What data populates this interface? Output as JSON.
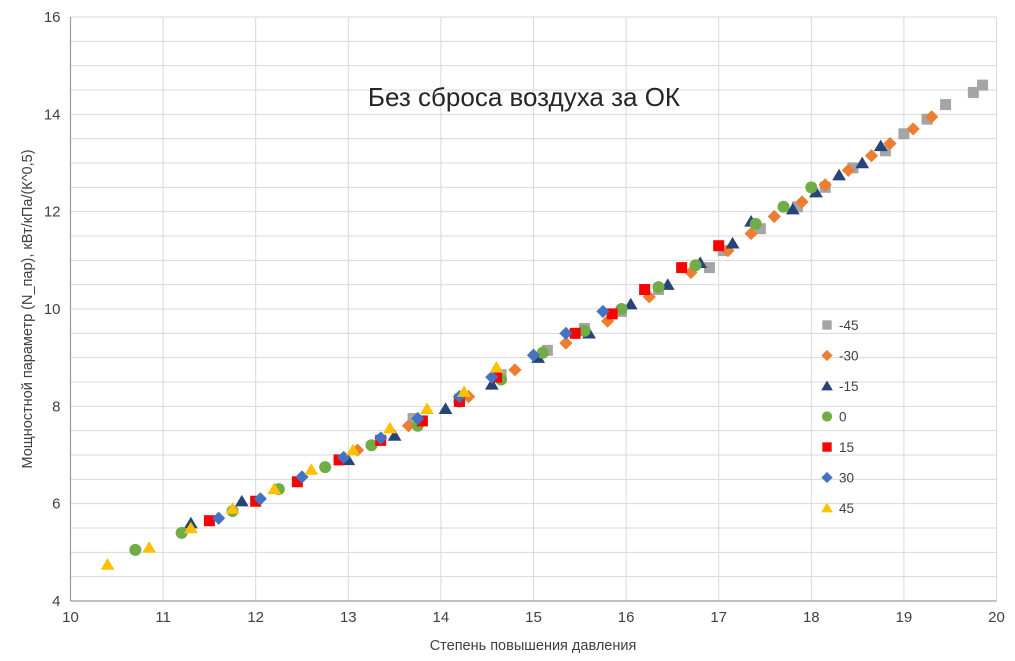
{
  "chart_data": {
    "type": "scatter",
    "title": "Без сброса воздуха за ОК",
    "xlabel": "Степень повышения давления",
    "ylabel": "Мощностной параметр (N_пар), кВт/кПа/(К^0,5)",
    "xlim": [
      10,
      20
    ],
    "ylim": [
      4,
      16
    ],
    "x_ticks": [
      10,
      11,
      12,
      13,
      14,
      15,
      16,
      17,
      18,
      19,
      20
    ],
    "y_ticks": [
      4,
      6,
      8,
      10,
      12,
      14,
      16
    ],
    "grid": {
      "vertical_step": 1,
      "horizontal_step": 0.5,
      "on": true
    },
    "legend_position": "middle-right",
    "colors": {
      "gridline": "#d9d9d9",
      "axis_line": "#9b9b9b",
      "tick_text": "#404040",
      "title_text": "#262626"
    },
    "series": [
      {
        "name": "-45",
        "marker": "square",
        "color": "#a5a5a5",
        "points": [
          [
            13.7,
            7.75
          ],
          [
            14.2,
            8.15
          ],
          [
            14.65,
            8.65
          ],
          [
            15.15,
            9.15
          ],
          [
            15.55,
            9.6
          ],
          [
            15.95,
            9.95
          ],
          [
            16.35,
            10.4
          ],
          [
            16.9,
            10.85
          ],
          [
            17.05,
            11.2
          ],
          [
            17.45,
            11.65
          ],
          [
            17.85,
            12.1
          ],
          [
            18.15,
            12.5
          ],
          [
            18.45,
            12.9
          ],
          [
            18.8,
            13.25
          ],
          [
            19.0,
            13.6
          ],
          [
            19.25,
            13.9
          ],
          [
            19.45,
            14.2
          ],
          [
            19.75,
            14.45
          ],
          [
            19.85,
            14.6
          ]
        ]
      },
      {
        "name": "-30",
        "marker": "diamond",
        "color": "#ed7d31",
        "points": [
          [
            13.1,
            7.1
          ],
          [
            13.65,
            7.6
          ],
          [
            14.3,
            8.2
          ],
          [
            14.8,
            8.75
          ],
          [
            15.35,
            9.3
          ],
          [
            15.8,
            9.75
          ],
          [
            16.25,
            10.25
          ],
          [
            16.7,
            10.75
          ],
          [
            17.1,
            11.2
          ],
          [
            17.35,
            11.55
          ],
          [
            17.6,
            11.9
          ],
          [
            17.9,
            12.2
          ],
          [
            18.15,
            12.55
          ],
          [
            18.4,
            12.85
          ],
          [
            18.65,
            13.15
          ],
          [
            18.85,
            13.4
          ],
          [
            19.1,
            13.7
          ],
          [
            19.3,
            13.95
          ]
        ]
      },
      {
        "name": "-15",
        "marker": "triangle",
        "color": "#264478",
        "points": [
          [
            11.3,
            5.6
          ],
          [
            11.85,
            6.05
          ],
          [
            13.0,
            6.9
          ],
          [
            13.5,
            7.4
          ],
          [
            14.05,
            7.95
          ],
          [
            14.55,
            8.45
          ],
          [
            15.05,
            9.0
          ],
          [
            15.6,
            9.5
          ],
          [
            16.05,
            10.1
          ],
          [
            16.45,
            10.5
          ],
          [
            16.8,
            10.95
          ],
          [
            17.15,
            11.35
          ],
          [
            17.35,
            11.8
          ],
          [
            17.8,
            12.05
          ],
          [
            18.05,
            12.4
          ],
          [
            18.3,
            12.75
          ],
          [
            18.55,
            13.0
          ],
          [
            18.75,
            13.35
          ]
        ]
      },
      {
        "name": "0",
        "marker": "circle",
        "color": "#70ad47",
        "points": [
          [
            10.7,
            5.05
          ],
          [
            11.2,
            5.4
          ],
          [
            11.75,
            5.85
          ],
          [
            12.25,
            6.3
          ],
          [
            12.75,
            6.75
          ],
          [
            13.25,
            7.2
          ],
          [
            13.75,
            7.6
          ],
          [
            14.2,
            8.1
          ],
          [
            14.65,
            8.55
          ],
          [
            15.1,
            9.1
          ],
          [
            15.55,
            9.55
          ],
          [
            15.95,
            10.0
          ],
          [
            16.35,
            10.45
          ],
          [
            16.75,
            10.9
          ],
          [
            17.4,
            11.75
          ],
          [
            17.7,
            12.1
          ],
          [
            18.0,
            12.5
          ]
        ]
      },
      {
        "name": "15",
        "marker": "square",
        "color": "#ff0000",
        "points": [
          [
            11.5,
            5.65
          ],
          [
            12.0,
            6.05
          ],
          [
            12.45,
            6.45
          ],
          [
            12.9,
            6.9
          ],
          [
            13.35,
            7.3
          ],
          [
            13.8,
            7.7
          ],
          [
            14.2,
            8.1
          ],
          [
            14.6,
            8.6
          ],
          [
            15.45,
            9.5
          ],
          [
            15.85,
            9.9
          ],
          [
            16.2,
            10.4
          ],
          [
            16.6,
            10.85
          ],
          [
            17.0,
            11.3
          ]
        ]
      },
      {
        "name": "30",
        "marker": "diamond",
        "color": "#4472c4",
        "points": [
          [
            11.6,
            5.7
          ],
          [
            12.05,
            6.1
          ],
          [
            12.5,
            6.55
          ],
          [
            12.95,
            6.95
          ],
          [
            13.35,
            7.35
          ],
          [
            13.75,
            7.75
          ],
          [
            14.2,
            8.2
          ],
          [
            14.55,
            8.6
          ],
          [
            15.0,
            9.05
          ],
          [
            15.35,
            9.5
          ],
          [
            15.75,
            9.95
          ]
        ]
      },
      {
        "name": "45",
        "marker": "triangle",
        "color": "#ffc000",
        "points": [
          [
            10.4,
            4.75
          ],
          [
            10.85,
            5.1
          ],
          [
            11.3,
            5.5
          ],
          [
            11.75,
            5.9
          ],
          [
            12.2,
            6.3
          ],
          [
            12.6,
            6.7
          ],
          [
            13.05,
            7.1
          ],
          [
            13.45,
            7.55
          ],
          [
            13.85,
            7.95
          ],
          [
            14.25,
            8.3
          ],
          [
            14.6,
            8.8
          ]
        ]
      }
    ]
  }
}
